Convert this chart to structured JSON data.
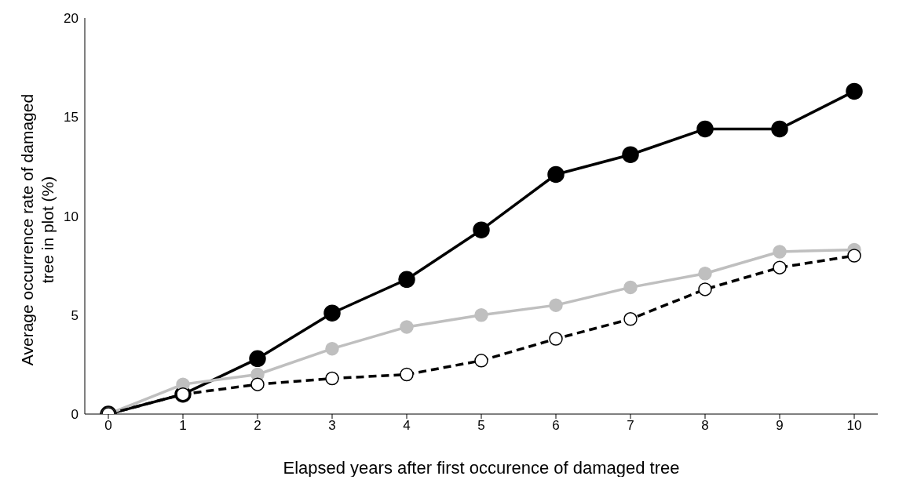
{
  "chart_data": {
    "type": "line",
    "xlabel": "Elapsed years after first occurence of damaged tree",
    "ylabel": "Average  occurrence rate of damaged\ntree in plot (%)",
    "categories": [
      "0",
      "1",
      "2",
      "3",
      "4",
      "5",
      "6",
      "7",
      "8",
      "9",
      "10"
    ],
    "series": [
      {
        "color": "#000000",
        "line_style": "solid",
        "values": [
          0,
          1.0,
          2.8,
          5.1,
          6.8,
          9.3,
          12.1,
          13.1,
          14.4,
          14.4,
          16.3
        ]
      },
      {
        "color": "#bfbfbf",
        "line_style": "solid",
        "values": [
          0,
          1.5,
          2.0,
          3.3,
          4.4,
          5.0,
          5.5,
          6.4,
          7.1,
          8.2,
          8.3
        ]
      },
      {
        "color": "#000000",
        "line_style": "dashed",
        "values": [
          0,
          1.0,
          1.5,
          1.8,
          2.0,
          2.7,
          3.8,
          4.8,
          6.3,
          7.4,
          8.0
        ]
      }
    ],
    "ylim": [
      0,
      20
    ],
    "yticks": [
      0,
      5,
      10,
      15,
      20
    ],
    "grid": false,
    "legend": false,
    "marker": "circle"
  }
}
